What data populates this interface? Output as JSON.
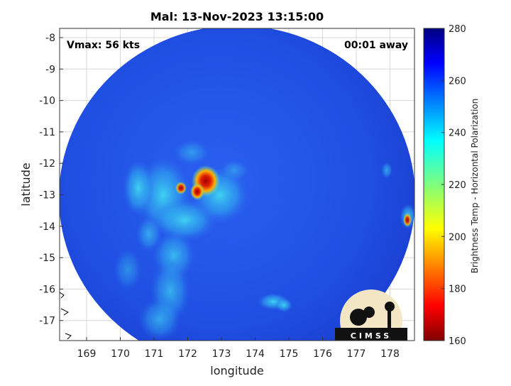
{
  "title": "Mal: 13-Nov-2023 13:15:00",
  "vmax_label": "Vmax: 56 kts",
  "time_away": "00:01 away",
  "xlabel": "longitude",
  "ylabel": "latitude",
  "x_ticks": [
    "169",
    "170",
    "171",
    "172",
    "173",
    "174",
    "175",
    "176",
    "177",
    "178"
  ],
  "y_ticks": [
    "-8",
    "-9",
    "-10",
    "-11",
    "-12",
    "-13",
    "-14",
    "-15",
    "-16",
    "-17"
  ],
  "colorbar": {
    "label": "Brightness Temp - Horizontal Polarization",
    "ticks": [
      "280",
      "260",
      "240",
      "220",
      "200",
      "180",
      "160"
    ],
    "range": [
      160,
      280
    ]
  },
  "logo_text": "CIMSS",
  "colors": {
    "background_swath": "#1f4fe0",
    "eyewall_hot": "#d81a00",
    "band_cyan": "#38c8f0"
  }
}
